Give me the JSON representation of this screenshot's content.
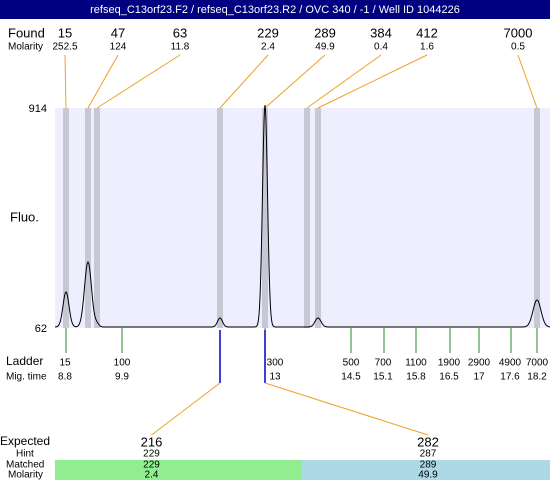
{
  "title": "refseq_C13orf23.F2 / refseq_C13orf23.R2 / OVC 340 / -1 / Well ID 1044226",
  "found": {
    "label": "Found",
    "molarity_label": "Molarity",
    "sizes": [
      15,
      47,
      63,
      229,
      289,
      384,
      412,
      7000
    ],
    "molarity": [
      252.5,
      124,
      11.8,
      2.4,
      49.9,
      0.4,
      1.6,
      0.5
    ]
  },
  "axis": {
    "label": "Fluo.",
    "ylim": [
      62,
      914
    ],
    "yticks": [
      914,
      62
    ]
  },
  "ladder": {
    "label": "Ladder",
    "time_label": "Mig. time",
    "sizes": [
      15,
      100,
      300,
      500,
      700,
      1100,
      1900,
      2900,
      4900,
      7000
    ],
    "times": [
      8.8,
      9.9,
      13,
      14.5,
      15.1,
      15.8,
      16.5,
      17,
      17.6,
      18.2
    ]
  },
  "expected": {
    "label": "Expected",
    "hint_label": "Hint",
    "matched_label": "Matched",
    "molarity_label": "Molarity",
    "columns": [
      {
        "expected": 216,
        "hint": 229,
        "matched": 229,
        "molarity": 2.4
      },
      {
        "expected": 282,
        "hint": 287,
        "matched": 289,
        "molarity": 49.9
      }
    ]
  }
}
